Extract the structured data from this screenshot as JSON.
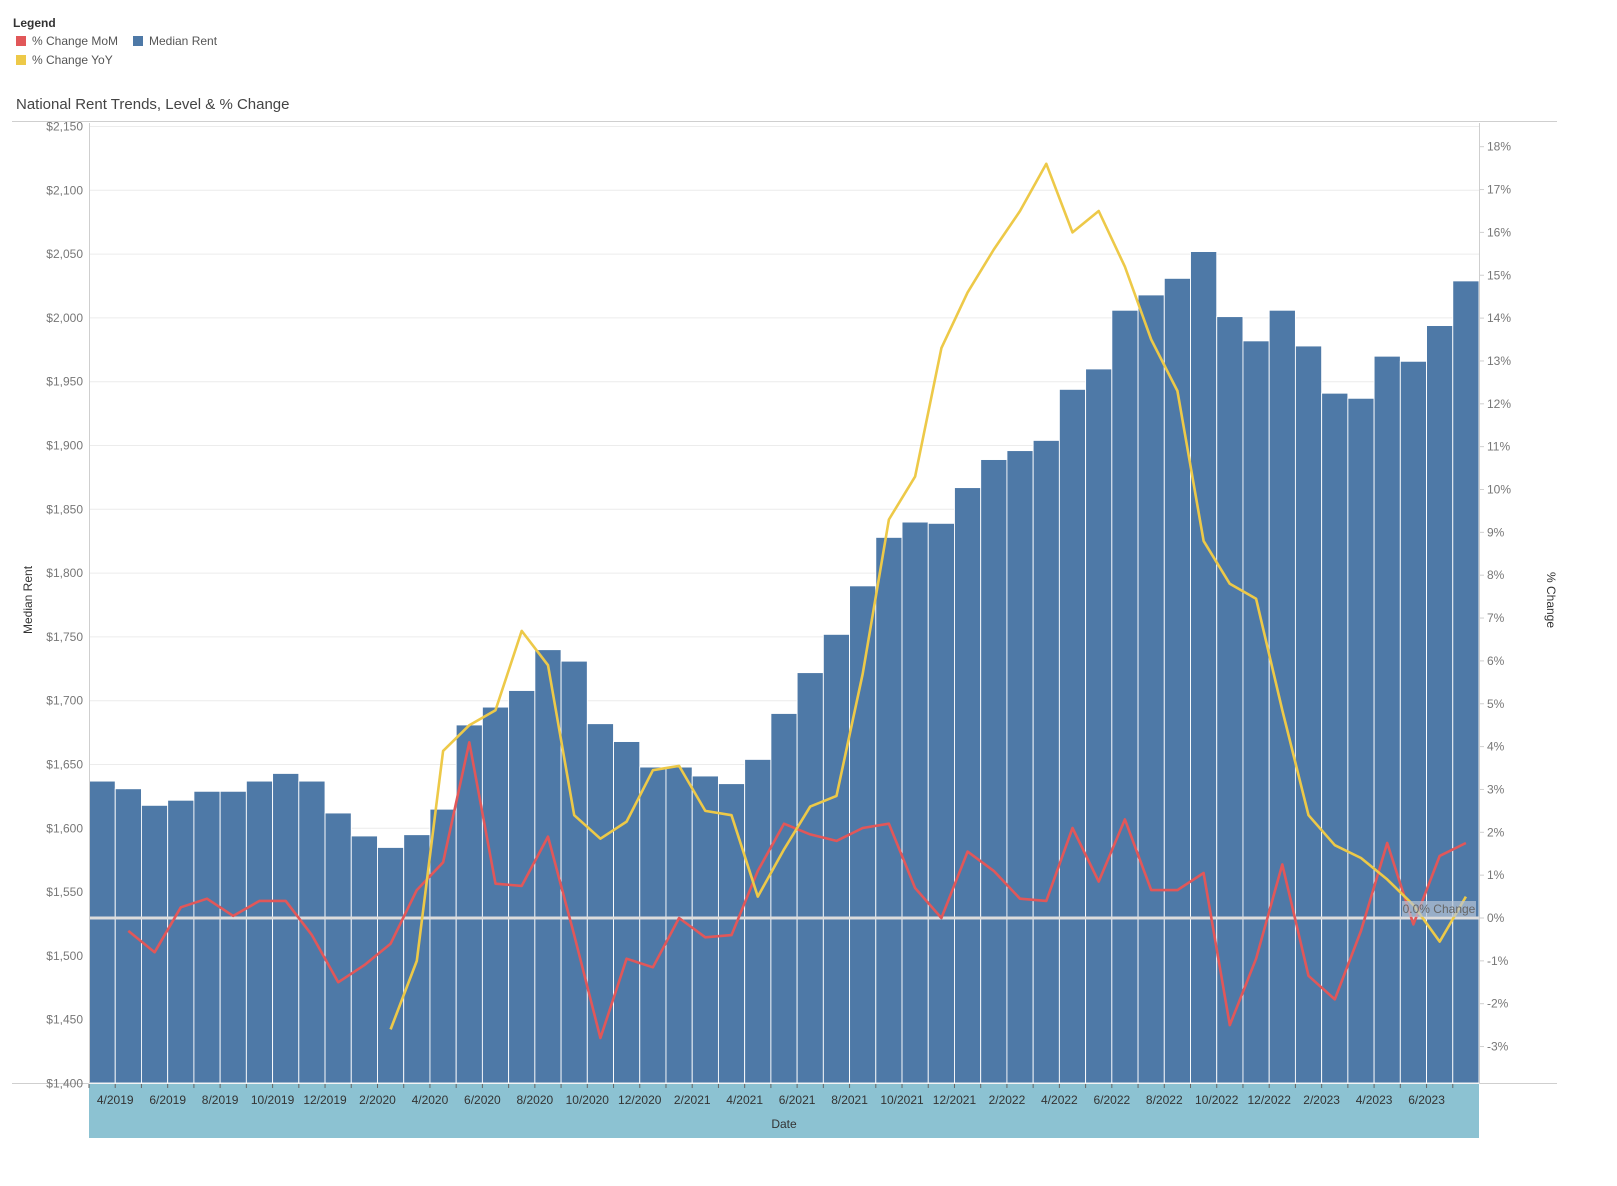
{
  "legend": {
    "title": "Legend",
    "items": [
      {
        "label": "% Change MoM",
        "color": "#e15759"
      },
      {
        "label": "Median Rent",
        "color": "#4e79a7"
      },
      {
        "label": "% Change YoY",
        "color": "#edc948"
      }
    ]
  },
  "chart_data": {
    "type": "bar",
    "title": "National Rent Trends, Level & % Change",
    "xlabel": "Date",
    "ylabel": "Median Rent",
    "y2label": "% Change",
    "ylim": [
      1400,
      2160
    ],
    "y2lim": [
      -3.8,
      18.4
    ],
    "yticks": [
      1400,
      1450,
      1500,
      1550,
      1600,
      1650,
      1700,
      1750,
      1800,
      1850,
      1900,
      1950,
      2000,
      2050,
      2100,
      2150
    ],
    "ytick_labels": [
      "$1,400",
      "$1,450",
      "$1,500",
      "$1,550",
      "$1,600",
      "$1,650",
      "$1,700",
      "$1,750",
      "$1,800",
      "$1,850",
      "$1,900",
      "$1,950",
      "$2,000",
      "$2,050",
      "$2,100",
      "$2,150"
    ],
    "y2ticks": [
      -3,
      -2,
      -1,
      0,
      1,
      2,
      3,
      4,
      5,
      6,
      7,
      8,
      9,
      10,
      11,
      12,
      13,
      14,
      15,
      16,
      17,
      18
    ],
    "y2tick_labels": [
      "-3%",
      "-2%",
      "-1%",
      "0%",
      "1%",
      "2%",
      "3%",
      "4%",
      "5%",
      "6%",
      "7%",
      "8%",
      "9%",
      "10%",
      "11%",
      "12%",
      "13%",
      "14%",
      "15%",
      "16%",
      "17%",
      "18%"
    ],
    "xtick_labels": [
      "4/2019",
      "6/2019",
      "8/2019",
      "10/2019",
      "12/2019",
      "2/2020",
      "4/2020",
      "6/2020",
      "8/2020",
      "10/2020",
      "12/2020",
      "2/2021",
      "4/2021",
      "6/2021",
      "8/2021",
      "10/2021",
      "12/2021",
      "2/2022",
      "4/2022",
      "6/2022",
      "8/2022",
      "10/2022",
      "12/2022",
      "2/2023",
      "4/2023",
      "6/2023"
    ],
    "categories": [
      "2019-03",
      "2019-04",
      "2019-05",
      "2019-06",
      "2019-07",
      "2019-08",
      "2019-09",
      "2019-10",
      "2019-11",
      "2019-12",
      "2020-01",
      "2020-02",
      "2020-03",
      "2020-04",
      "2020-05",
      "2020-06",
      "2020-07",
      "2020-08",
      "2020-09",
      "2020-10",
      "2020-11",
      "2020-12",
      "2021-01",
      "2021-02",
      "2021-03",
      "2021-04",
      "2021-05",
      "2021-06",
      "2021-07",
      "2021-08",
      "2021-09",
      "2021-10",
      "2021-11",
      "2021-12",
      "2022-01",
      "2022-02",
      "2022-03",
      "2022-04",
      "2022-05",
      "2022-06",
      "2022-07",
      "2022-08",
      "2022-09",
      "2022-10",
      "2022-11",
      "2022-12",
      "2023-01",
      "2023-02",
      "2023-03",
      "2023-04",
      "2023-05",
      "2023-06",
      "2023-07"
    ],
    "series": [
      {
        "name": "Median Rent",
        "kind": "bar",
        "color": "#4e79a7",
        "values": [
          1637,
          1631,
          1618,
          1622,
          1629,
          1629,
          1637,
          1643,
          1637,
          1612,
          1594,
          1585,
          1595,
          1615,
          1681,
          1695,
          1708,
          1740,
          1731,
          1682,
          1668,
          1648,
          1648,
          1641,
          1635,
          1654,
          1690,
          1722,
          1752,
          1790,
          1828,
          1840,
          1839,
          1867,
          1889,
          1896,
          1904,
          1944,
          1960,
          2006,
          2018,
          2031,
          2052,
          2001,
          1982,
          2006,
          1978,
          1941,
          1937,
          1970,
          1966,
          1994,
          2029
        ]
      },
      {
        "name": "% Change MoM",
        "kind": "line",
        "color": "#e15759",
        "values": [
          null,
          -0.3,
          -0.8,
          0.25,
          0.45,
          0.05,
          0.4,
          0.4,
          -0.4,
          -1.5,
          -1.1,
          -0.6,
          0.65,
          1.3,
          4.1,
          0.8,
          0.75,
          1.9,
          -0.4,
          -2.8,
          -0.95,
          -1.15,
          0.0,
          -0.45,
          -0.4,
          1.1,
          2.2,
          1.95,
          1.8,
          2.1,
          2.2,
          0.7,
          0.0,
          1.55,
          1.1,
          0.45,
          0.4,
          2.1,
          0.85,
          2.3,
          0.65,
          0.65,
          1.05,
          -2.5,
          -0.95,
          1.25,
          -1.35,
          -1.9,
          -0.3,
          1.75,
          -0.15,
          1.45,
          1.75
        ]
      },
      {
        "name": "% Change YoY",
        "kind": "line",
        "color": "#edc948",
        "values": [
          null,
          null,
          null,
          null,
          null,
          null,
          null,
          null,
          null,
          null,
          null,
          -2.6,
          -1.0,
          3.9,
          4.5,
          4.85,
          6.7,
          5.9,
          2.4,
          1.85,
          2.25,
          3.45,
          3.55,
          2.5,
          2.4,
          0.5,
          1.6,
          2.6,
          2.85,
          5.7,
          9.3,
          10.3,
          13.3,
          14.6,
          15.6,
          16.5,
          17.6,
          16.0,
          16.5,
          15.2,
          13.5,
          12.3,
          8.8,
          7.8,
          7.45,
          4.85,
          2.4,
          1.7,
          1.4,
          0.9,
          0.3,
          -0.55,
          0.5
        ]
      }
    ],
    "reference_line": {
      "value": 0,
      "label": "0.0% Change"
    }
  }
}
